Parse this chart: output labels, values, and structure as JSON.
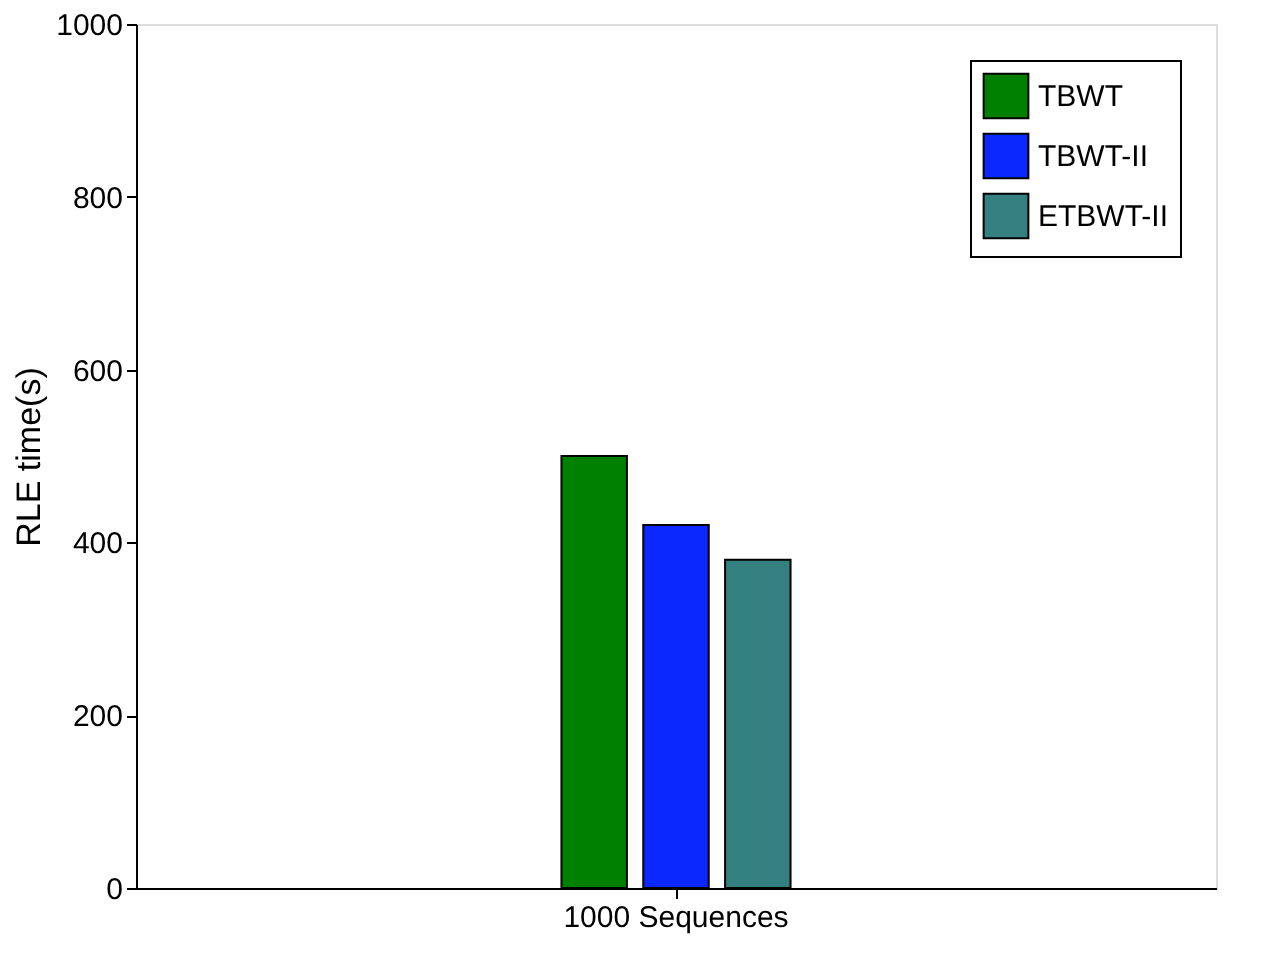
{
  "chart_data": {
    "type": "bar",
    "ylabel": "RLE time(s)",
    "categories": [
      "1000 Sequences"
    ],
    "series": [
      {
        "name": "TBWT",
        "color": "#008000",
        "values": [
          500
        ]
      },
      {
        "name": "TBWT-II",
        "color": "#0a28ff",
        "values": [
          420
        ]
      },
      {
        "name": "ETBWT-II",
        "color": "#347f7f",
        "values": [
          380
        ]
      }
    ],
    "ylim": [
      0,
      1000
    ],
    "yticks": [
      0,
      200,
      400,
      600,
      800,
      1000
    ],
    "grid": false,
    "legend": "top right"
  }
}
